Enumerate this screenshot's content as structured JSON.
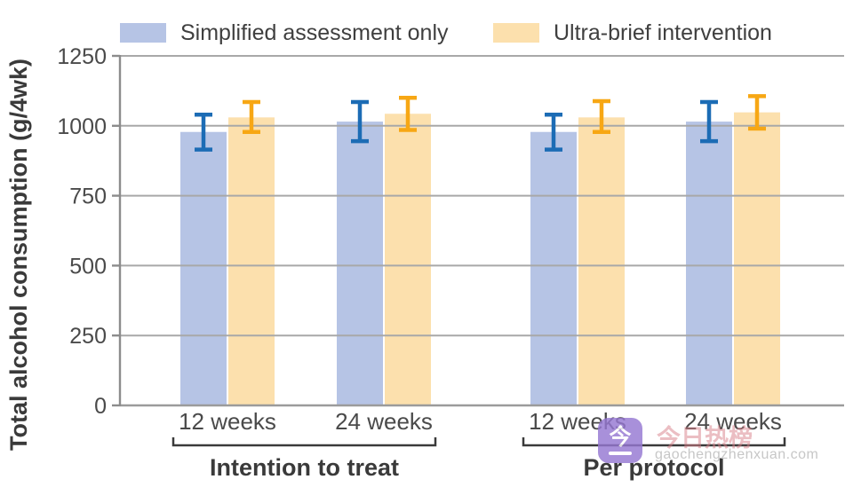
{
  "figure": {
    "watermark": {
      "icon_char": "今",
      "brand_text": "今日热榜",
      "domain_text": "gaochengzhenxuan.com",
      "icon_color": "#9678d2",
      "brand_color": "#d97f88",
      "domain_color": "#c7c7c7"
    }
  },
  "chart_data": {
    "type": "bar",
    "title": "",
    "ylabel": "Total alcohol consumption (g/4wk)",
    "xlabel": "",
    "ylim": [
      0,
      1250
    ],
    "yticks": [
      0,
      250,
      500,
      750,
      1000,
      1250
    ],
    "grid": true,
    "legend_position": "top",
    "categories": [
      "12 weeks",
      "24 weeks",
      "12 weeks",
      "24 weeks"
    ],
    "group_ids": [
      "itt-12wk",
      "itt-24wk",
      "pp-12wk",
      "pp-24wk"
    ],
    "sections": [
      {
        "label": "Intention to treat",
        "groups": [
          0,
          1
        ]
      },
      {
        "label": "Per protocol",
        "groups": [
          2,
          3
        ]
      }
    ],
    "series": [
      {
        "name": "Simplified assessment only",
        "id": "simplified-assessment-only",
        "bar_color": "#b6c4e5",
        "error_color": "#1c6cb5",
        "values": [
          978,
          1015,
          978,
          1015
        ],
        "error_low": [
          915,
          945,
          915,
          945
        ],
        "error_high": [
          1040,
          1085,
          1040,
          1085
        ]
      },
      {
        "name": "Ultra-brief intervention",
        "id": "ultra-brief-intervention",
        "bar_color": "#fce0ad",
        "error_color": "#f7a714",
        "values": [
          1030,
          1043,
          1030,
          1048
        ],
        "error_low": [
          978,
          985,
          978,
          990
        ],
        "error_high": [
          1085,
          1100,
          1088,
          1106
        ]
      }
    ],
    "colors": {
      "gridline": "#a8a8a8",
      "axis": "#8c8c8c",
      "baseline": "#9b9b9b",
      "tick_text": "#4a4a4a",
      "dark_text": "#3a3a3a"
    }
  }
}
